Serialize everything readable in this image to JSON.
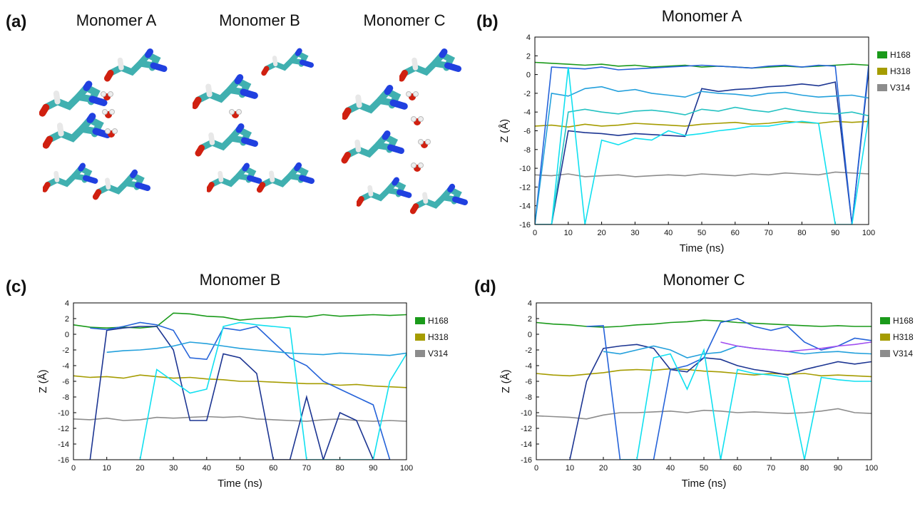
{
  "panel_a": {
    "label": "(a)",
    "titles": [
      "Monomer A",
      "Monomer B",
      "Monomer C"
    ]
  },
  "chart_data": [
    {
      "type": "line",
      "panel_label": "(b)",
      "title": "Monomer A",
      "xlabel": "Time (ns)",
      "ylabel": "Z (Å)",
      "x": [
        0,
        5,
        10,
        15,
        20,
        25,
        30,
        35,
        40,
        45,
        50,
        55,
        60,
        65,
        70,
        75,
        80,
        85,
        90,
        95,
        100
      ],
      "xlim": [
        0,
        100
      ],
      "xticks": [
        0,
        10,
        20,
        30,
        40,
        50,
        60,
        70,
        80,
        90,
        100
      ],
      "ylim": [
        -16,
        4
      ],
      "yticks": [
        4,
        2,
        0,
        -2,
        -4,
        -6,
        -8,
        -10,
        -12,
        -14,
        -16
      ],
      "series": [
        {
          "name": "H168",
          "color": "#1a9a1a",
          "values": [
            1.3,
            1.2,
            1.1,
            1,
            1.1,
            0.9,
            1,
            0.8,
            0.9,
            1,
            0.8,
            0.9,
            0.8,
            0.7,
            0.8,
            0.9,
            0.8,
            0.9,
            1,
            1.1,
            1
          ]
        },
        {
          "name": "H318",
          "color": "#a59c00",
          "values": [
            -5.5,
            -5.4,
            -5.6,
            -5.3,
            -5.5,
            -5.4,
            -5.2,
            -5.3,
            -5.4,
            -5.5,
            -5.3,
            -5.2,
            -5.1,
            -5.3,
            -5.2,
            -5,
            -5.1,
            -5.2,
            -5,
            -5.1,
            -5
          ]
        },
        {
          "name": "V314",
          "color": "#8c8c8c",
          "values": [
            -10.7,
            -10.8,
            -10.6,
            -10.9,
            -10.8,
            -10.7,
            -10.9,
            -10.8,
            -10.7,
            -10.8,
            -10.6,
            -10.7,
            -10.8,
            -10.6,
            -10.7,
            -10.5,
            -10.6,
            -10.7,
            -10.4,
            -10.5,
            -10.6
          ]
        },
        {
          "color": "#1c3592",
          "values": [
            -16,
            -16,
            -6,
            -6.2,
            -6.3,
            -6.5,
            -6.3,
            -6.4,
            -6.5,
            -6.6,
            -1.5,
            -1.8,
            -1.6,
            -1.5,
            -1.3,
            -1.2,
            -1,
            -1.2,
            -0.8,
            -16,
            0.5
          ]
        },
        {
          "color": "#2563d9",
          "values": [
            -16,
            0.8,
            0.7,
            0.6,
            0.8,
            0.5,
            0.6,
            0.7,
            0.8,
            0.9,
            1,
            0.9,
            0.8,
            0.7,
            0.9,
            1,
            0.8,
            1,
            0.9,
            -16,
            1
          ]
        },
        {
          "color": "#23a0dc",
          "values": [
            -16,
            -2,
            -2.3,
            -1.5,
            -1.3,
            -1.8,
            -1.6,
            -2,
            -2.2,
            -2.4,
            -1.8,
            -2,
            -2.1,
            -2.3,
            -2,
            -1.9,
            -2.2,
            -2.4,
            -2.3,
            -2.2,
            -2.5
          ]
        },
        {
          "color": "#24c2c2",
          "values": [
            -16,
            -16,
            -4,
            -3.7,
            -4,
            -4.2,
            -3.9,
            -3.8,
            -4,
            -4.3,
            -3.7,
            -3.9,
            -3.5,
            -3.8,
            -4,
            -3.6,
            -3.9,
            -4.1,
            -4.2,
            -4,
            -4.4
          ]
        },
        {
          "color": "#10e0f0",
          "values": [
            -16,
            -16,
            0.8,
            -16,
            -7,
            -7.5,
            -6.8,
            -7,
            -6,
            -6.5,
            -6.3,
            -6,
            -5.8,
            -5.5,
            -5.5,
            -5.2,
            -5,
            -5.2,
            -16,
            -16,
            -4.5
          ]
        }
      ]
    },
    {
      "type": "line",
      "panel_label": "(c)",
      "title": "Monomer B",
      "xlabel": "Time (ns)",
      "ylabel": "Z (Å)",
      "x": [
        0,
        5,
        10,
        15,
        20,
        25,
        30,
        35,
        40,
        45,
        50,
        55,
        60,
        65,
        70,
        75,
        80,
        85,
        90,
        95,
        100
      ],
      "xlim": [
        0,
        100
      ],
      "xticks": [
        0,
        10,
        20,
        30,
        40,
        50,
        60,
        70,
        80,
        90,
        100
      ],
      "ylim": [
        -16,
        4
      ],
      "yticks": [
        4,
        2,
        0,
        -2,
        -4,
        -6,
        -8,
        -10,
        -12,
        -14,
        -16
      ],
      "series": [
        {
          "name": "H168",
          "color": "#1a9a1a",
          "values": [
            1.2,
            0.9,
            0.8,
            0.9,
            0.8,
            1,
            2.7,
            2.6,
            2.3,
            2.2,
            1.8,
            2,
            2.1,
            2.3,
            2.2,
            2.5,
            2.3,
            2.4,
            2.5,
            2.4,
            2.5
          ]
        },
        {
          "name": "H318",
          "color": "#a59c00",
          "values": [
            -5.3,
            -5.5,
            -5.4,
            -5.6,
            -5.2,
            -5.4,
            -5.6,
            -5.5,
            -5.7,
            -5.8,
            -6,
            -6,
            -6.1,
            -6.2,
            -6.3,
            -6.3,
            -6.5,
            -6.4,
            -6.6,
            -6.7,
            -6.8
          ]
        },
        {
          "name": "V314",
          "color": "#8c8c8c",
          "values": [
            -10.8,
            -10.9,
            -10.7,
            -11,
            -10.9,
            -10.6,
            -10.7,
            -10.6,
            -10.5,
            -10.6,
            -10.5,
            -10.8,
            -10.9,
            -11,
            -11.1,
            -10.9,
            -10.8,
            -11,
            -11.1,
            -11,
            -11.1
          ]
        },
        {
          "color": "#1c3592",
          "values": [
            null,
            -16,
            0.5,
            0.8,
            1,
            1,
            -2,
            -11,
            -11,
            -2.5,
            -3,
            -5,
            -16,
            -16,
            -8,
            -16,
            -10,
            -11,
            -16,
            -16,
            null
          ]
        },
        {
          "color": "#2563d9",
          "values": [
            null,
            0.8,
            0.6,
            1,
            1.5,
            1.2,
            0.5,
            -3,
            -3.2,
            0.8,
            0.5,
            1,
            -1,
            -3,
            -4,
            -6,
            -7,
            -8,
            -9,
            -16,
            null
          ]
        },
        {
          "color": "#23a0dc",
          "values": [
            null,
            null,
            -2.3,
            -2.1,
            -2,
            -1.8,
            -1.5,
            -1,
            -1.2,
            -1.5,
            -1.8,
            -2,
            -2.2,
            -2.4,
            -2.5,
            -2.6,
            -2.4,
            -2.5,
            -2.6,
            -2.7,
            -2.4
          ]
        },
        {
          "color": "#10e0f0",
          "values": [
            null,
            null,
            null,
            null,
            -16,
            -4.5,
            -6,
            -7.5,
            -7,
            1,
            1.5,
            1.2,
            1,
            0.8,
            -16,
            -16,
            -16,
            -16,
            -16,
            -6,
            -2.5
          ]
        }
      ]
    },
    {
      "type": "line",
      "panel_label": "(d)",
      "title": "Monomer C",
      "xlabel": "Time (ns)",
      "ylabel": "Z (Å)",
      "x": [
        0,
        5,
        10,
        15,
        20,
        25,
        30,
        35,
        40,
        45,
        50,
        55,
        60,
        65,
        70,
        75,
        80,
        85,
        90,
        95,
        100
      ],
      "xlim": [
        0,
        100
      ],
      "xticks": [
        0,
        10,
        20,
        30,
        40,
        50,
        60,
        70,
        80,
        90,
        100
      ],
      "ylim": [
        -16,
        4
      ],
      "yticks": [
        4,
        2,
        0,
        -2,
        -4,
        -6,
        -8,
        -10,
        -12,
        -14,
        -16
      ],
      "series": [
        {
          "name": "H168",
          "color": "#1a9a1a",
          "values": [
            1.5,
            1.3,
            1.2,
            1,
            0.9,
            1,
            1.2,
            1.3,
            1.5,
            1.6,
            1.8,
            1.7,
            1.5,
            1.4,
            1.3,
            1.2,
            1.1,
            1,
            1.1,
            1,
            1
          ]
        },
        {
          "name": "H318",
          "color": "#a59c00",
          "values": [
            -5,
            -5.2,
            -5.3,
            -5.1,
            -4.9,
            -4.6,
            -4.5,
            -4.6,
            -4.4,
            -4.5,
            -4.7,
            -4.8,
            -5,
            -5.2,
            -5,
            -5.1,
            -5,
            -5.3,
            -5.2,
            -5.3,
            -5.4
          ]
        },
        {
          "name": "V314",
          "color": "#8c8c8c",
          "values": [
            -10.4,
            -10.5,
            -10.6,
            -10.8,
            -10.3,
            -10,
            -10,
            -9.9,
            -9.8,
            -10,
            -9.7,
            -9.8,
            -10,
            -9.9,
            -10,
            -10.1,
            -10,
            -9.8,
            -9.5,
            -10,
            -10.1
          ]
        },
        {
          "color": "#1c3592",
          "values": [
            null,
            null,
            -16,
            -6,
            -1.8,
            -1.5,
            -1.3,
            -1.8,
            -4.5,
            -4.8,
            -3,
            -3.2,
            -4,
            -4.5,
            -4.8,
            -5.2,
            -4.5,
            -4,
            -3.5,
            -3.8,
            -3.5
          ]
        },
        {
          "color": "#2563d9",
          "values": [
            null,
            null,
            null,
            1,
            1.1,
            -16,
            -16,
            -16,
            -4.5,
            -4,
            -3,
            1.5,
            2,
            1,
            0.5,
            1,
            -1,
            -2,
            -1.5,
            -0.5,
            -0.8
          ]
        },
        {
          "color": "#23a0dc",
          "values": [
            null,
            null,
            null,
            null,
            -2.2,
            -2.5,
            -2,
            -1.5,
            -2,
            -3,
            -2.5,
            -2.3,
            -1.5,
            -1.8,
            -2,
            -2.2,
            -2.5,
            -2.3,
            -2.2,
            -2.4,
            -2.5
          ]
        },
        {
          "color": "#10e0f0",
          "values": [
            null,
            null,
            null,
            null,
            null,
            -16,
            -16,
            -3,
            -2.5,
            -7,
            -2,
            -16,
            -4.5,
            -5,
            -5.2,
            -5.5,
            -16,
            -5.5,
            -5.8,
            -6,
            -6
          ]
        },
        {
          "color": "#a04ef0",
          "values": [
            null,
            null,
            null,
            null,
            null,
            null,
            null,
            null,
            null,
            null,
            null,
            -1,
            -1.5,
            -1.8,
            -2,
            -2.2,
            -2,
            -1.8,
            -1.5,
            -1.3,
            -1
          ]
        }
      ]
    }
  ]
}
